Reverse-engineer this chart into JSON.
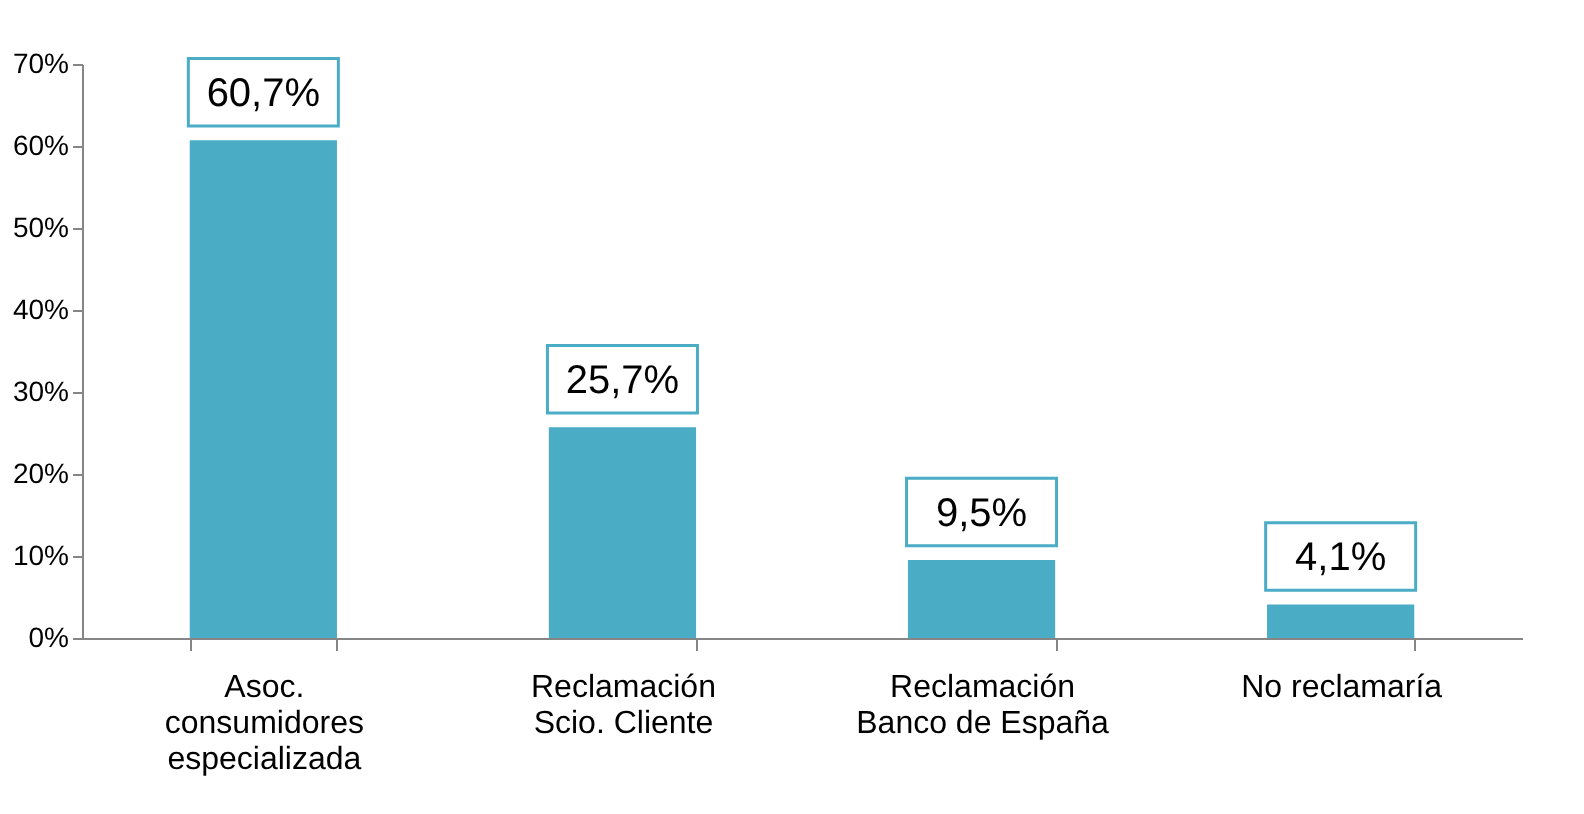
{
  "chart_data": {
    "type": "bar",
    "categories": [
      "Asoc. consumidores especializada",
      "Reclamación Scio. Cliente",
      "Reclamación Banco de España",
      "No reclamaría"
    ],
    "values": [
      60.7,
      25.7,
      9.5,
      4.1
    ],
    "value_labels": [
      "60,7%",
      "25,7%",
      "9,5%",
      "4,1%"
    ],
    "color": "#4bacc6",
    "ylim": [
      0,
      70
    ],
    "yticks": [
      {
        "value": 0,
        "label": "0%"
      },
      {
        "value": 10,
        "label": "10%"
      },
      {
        "value": 20,
        "label": "20%"
      },
      {
        "value": 30,
        "label": "30%"
      },
      {
        "value": 40,
        "label": "40%"
      },
      {
        "value": 50,
        "label": "50%"
      },
      {
        "value": 60,
        "label": "60%"
      },
      {
        "value": 70,
        "label": "70%"
      }
    ],
    "grid": false
  }
}
